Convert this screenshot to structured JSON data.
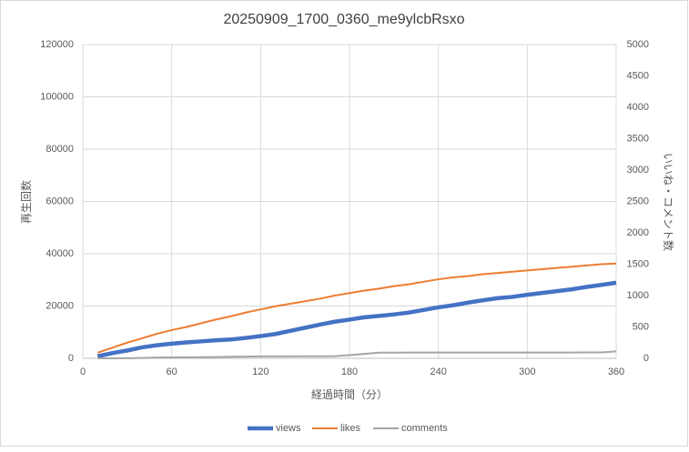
{
  "chart_data": {
    "type": "line",
    "title": "20250909_1700_0360_me9ylcbRsxo",
    "x_label": "経過時間（分）",
    "y_label": "再生回数",
    "y2_label": "いいね・コメント数",
    "x": [
      10,
      20,
      30,
      40,
      50,
      60,
      70,
      80,
      90,
      100,
      110,
      120,
      130,
      140,
      150,
      160,
      170,
      180,
      190,
      200,
      210,
      220,
      230,
      240,
      250,
      260,
      270,
      280,
      290,
      300,
      310,
      320,
      330,
      340,
      350,
      360
    ],
    "xlim": [
      0,
      360
    ],
    "xticks": [
      0,
      60,
      120,
      180,
      240,
      300,
      360
    ],
    "ylim": [
      0,
      120000
    ],
    "yticks": [
      0,
      20000,
      40000,
      60000,
      80000,
      100000,
      120000
    ],
    "y2lim": [
      0,
      5000
    ],
    "y2ticks": [
      0,
      500,
      1000,
      1500,
      2000,
      2500,
      3000,
      3500,
      4000,
      4500,
      5000
    ],
    "grid": true,
    "legend": "bottom",
    "series": [
      {
        "name": "views",
        "color": "#4472c4",
        "values": [
          800,
          2000,
          3000,
          4200,
          5000,
          5600,
          6100,
          6500,
          6900,
          7200,
          7800,
          8500,
          9300,
          10500,
          11700,
          12900,
          14000,
          14800,
          15700,
          16200,
          16800,
          17500,
          18500,
          19500,
          20300,
          21300,
          22200,
          23000,
          23500,
          24300,
          25000,
          25700,
          26400,
          27300,
          28100,
          28900
        ]
      },
      {
        "name": "likes",
        "color": "#ed7d31",
        "axis": "y2",
        "values": [
          90,
          170,
          250,
          320,
          390,
          450,
          500,
          560,
          620,
          670,
          730,
          780,
          830,
          870,
          910,
          950,
          1000,
          1040,
          1080,
          1110,
          1150,
          1180,
          1220,
          1260,
          1290,
          1310,
          1340,
          1360,
          1380,
          1400,
          1420,
          1440,
          1460,
          1480,
          1500,
          1510
        ]
      },
      {
        "name": "comments",
        "color": "#a5a5a5",
        "axis": "y2",
        "values": [
          0,
          0,
          2,
          5,
          12,
          15,
          17,
          18,
          20,
          25,
          28,
          30,
          30,
          31,
          32,
          33,
          35,
          50,
          70,
          90,
          90,
          92,
          92,
          92,
          92,
          92,
          92,
          92,
          92,
          93,
          93,
          93,
          93,
          94,
          95,
          110
        ]
      }
    ]
  }
}
